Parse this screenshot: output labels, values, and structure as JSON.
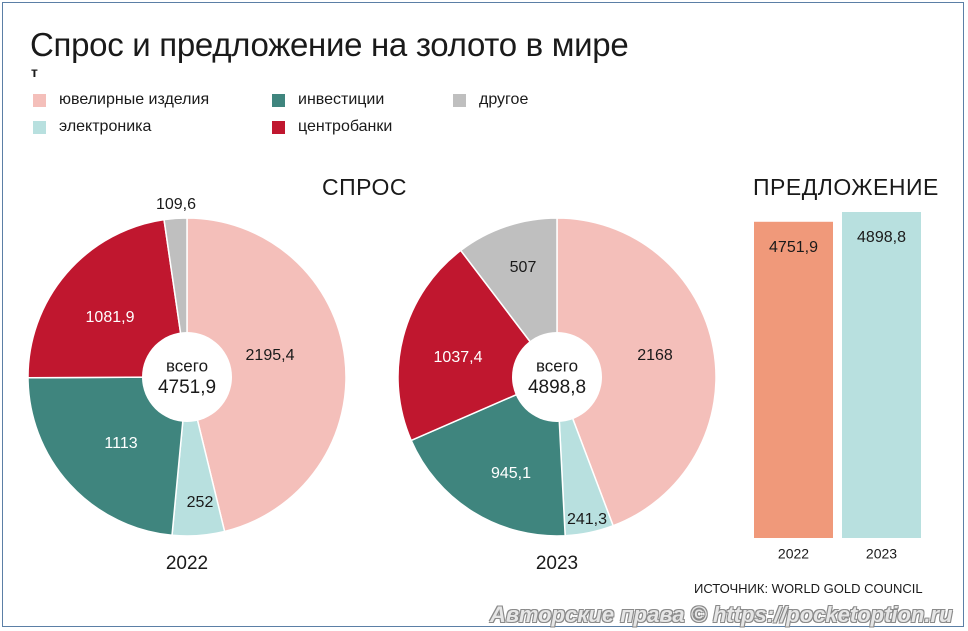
{
  "title": "Спрос и предложение на золото в мире",
  "unit": "т",
  "legend": [
    {
      "label": "ювелирные изделия",
      "color": "#f4bfba"
    },
    {
      "label": "инвестиции",
      "color": "#3f857e"
    },
    {
      "label": "другое",
      "color": "#bfbfbf"
    },
    {
      "label": "электроника",
      "color": "#b8e0df"
    },
    {
      "label": "центробанки",
      "color": "#c0172f"
    }
  ],
  "demand_title": "СПРОС",
  "supply_title": "ПРЕДЛОЖЕНИЕ",
  "source": "ИСТОЧНИК: WORLD GOLD COUNCIL",
  "watermark": "Авторские права © https://pocketoption.ru",
  "chart_data": [
    {
      "type": "pie",
      "title": "СПРОС",
      "year": "2022",
      "center_label": "всего",
      "total": "4751,9",
      "categories": [
        "ювелирные изделия",
        "электроника",
        "инвестиции",
        "центробанки",
        "другое"
      ],
      "values": [
        2195.4,
        252,
        1113,
        1081.9,
        109.6
      ],
      "value_labels": [
        "2195,4",
        "252",
        "1113",
        "1081,9",
        "109,6"
      ],
      "colors": [
        "#f4bfba",
        "#b8e0df",
        "#3f857e",
        "#c0172f",
        "#bfbfbf"
      ]
    },
    {
      "type": "pie",
      "title": "СПРОС",
      "year": "2023",
      "center_label": "всего",
      "total": "4898,8",
      "categories": [
        "ювелирные изделия",
        "электроника",
        "инвестиции",
        "центробанки",
        "другое"
      ],
      "values": [
        2168,
        241.3,
        945.1,
        1037.4,
        507
      ],
      "value_labels": [
        "2168",
        "241,3",
        "945,1",
        "1037,4",
        "507"
      ],
      "colors": [
        "#f4bfba",
        "#b8e0df",
        "#3f857e",
        "#c0172f",
        "#bfbfbf"
      ]
    },
    {
      "type": "bar",
      "title": "ПРЕДЛОЖЕНИЕ",
      "categories": [
        "2022",
        "2023"
      ],
      "values": [
        4751.9,
        4898.8
      ],
      "value_labels": [
        "4751,9",
        "4898,8"
      ],
      "colors": [
        "#f0997a",
        "#b8e0df"
      ]
    }
  ]
}
